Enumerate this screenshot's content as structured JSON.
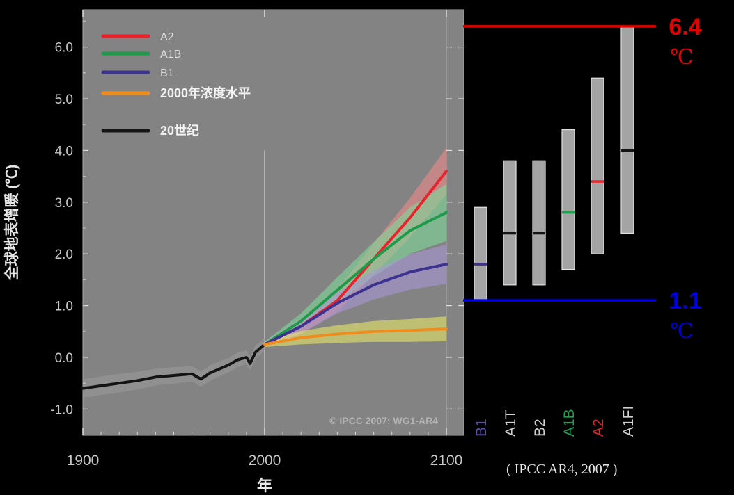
{
  "chart_data": [
    {
      "type": "line",
      "xlabel": "年",
      "ylabel": "全球地表增暖 (℃)",
      "xlim": [
        1900,
        2100
      ],
      "ylim": [
        -1.5,
        6.5
      ],
      "x_ticks": [
        "1900",
        "2000",
        "2100"
      ],
      "y_ticks": [
        "6.0",
        "5.0",
        "4.0",
        "3.0",
        "2.0",
        "1.0",
        "0.0",
        "-1.0"
      ],
      "watermark": "© IPCC 2007: WG1-AR4",
      "legend": [
        {
          "name": "A2",
          "color": "#e8232c"
        },
        {
          "name": "A1B",
          "color": "#1e9a4a"
        },
        {
          "name": "B1",
          "color": "#3c3290"
        },
        {
          "name": "2000年浓度水平",
          "color": "#f08c1e"
        },
        {
          "name": "20世纪",
          "color": "#141414"
        }
      ],
      "series": [
        {
          "name": "20世纪",
          "color": "#141414",
          "band_color": "#9a9a9a",
          "x": [
            1900,
            1910,
            1920,
            1930,
            1940,
            1950,
            1960,
            1965,
            1970,
            1980,
            1985,
            1990,
            1992,
            1995,
            2000
          ],
          "y": [
            -0.6,
            -0.55,
            -0.5,
            -0.45,
            -0.38,
            -0.35,
            -0.32,
            -0.42,
            -0.3,
            -0.15,
            -0.05,
            0.0,
            -0.12,
            0.1,
            0.25
          ],
          "band": [
            0.18,
            0.18,
            0.18,
            0.17,
            0.16,
            0.16,
            0.15,
            0.15,
            0.15,
            0.14,
            0.14,
            0.13,
            0.13,
            0.13,
            0.12
          ]
        },
        {
          "name": "A2",
          "color": "#e8232c",
          "band_color": "#f08a8a",
          "x": [
            2000,
            2020,
            2040,
            2060,
            2080,
            2100
          ],
          "y": [
            0.25,
            0.6,
            1.1,
            1.9,
            2.7,
            3.6
          ],
          "band": [
            0.05,
            0.15,
            0.22,
            0.3,
            0.38,
            0.45
          ]
        },
        {
          "name": "A1B",
          "color": "#1e9a4a",
          "band_color": "#7ed89a",
          "x": [
            2000,
            2020,
            2040,
            2060,
            2080,
            2100
          ],
          "y": [
            0.25,
            0.7,
            1.3,
            1.9,
            2.45,
            2.8
          ],
          "band": [
            0.05,
            0.15,
            0.25,
            0.33,
            0.45,
            0.55
          ]
        },
        {
          "name": "B1",
          "color": "#3c3290",
          "band_color": "#a898d6",
          "x": [
            2000,
            2020,
            2040,
            2060,
            2080,
            2100
          ],
          "y": [
            0.25,
            0.6,
            1.05,
            1.4,
            1.65,
            1.8
          ],
          "band": [
            0.05,
            0.14,
            0.2,
            0.28,
            0.34,
            0.38
          ]
        },
        {
          "name": "2000年浓度水平",
          "color": "#f08c1e",
          "band_color": "#e8e86a",
          "x": [
            2000,
            2020,
            2040,
            2060,
            2080,
            2100
          ],
          "y": [
            0.25,
            0.38,
            0.45,
            0.5,
            0.52,
            0.55
          ],
          "band": [
            0.05,
            0.13,
            0.17,
            0.2,
            0.22,
            0.24
          ]
        }
      ]
    },
    {
      "type": "range",
      "categories": [
        "B1",
        "A1T",
        "B2",
        "A1B",
        "A2",
        "A1FI"
      ],
      "label_colors": [
        "#5a50b4",
        "#d2d2d2",
        "#d2d2d2",
        "#1ea050",
        "#e8232c",
        "#d2d2d2"
      ],
      "low": [
        1.1,
        1.4,
        1.4,
        1.7,
        2.0,
        2.4
      ],
      "high": [
        2.9,
        3.8,
        3.8,
        4.4,
        5.4,
        6.4
      ],
      "best": [
        1.8,
        2.4,
        2.4,
        2.8,
        3.4,
        4.0
      ],
      "best_colors": [
        "#3c3290",
        "#141414",
        "#141414",
        "#1ea050",
        "#e8232c",
        "#141414"
      ],
      "bounds": [
        {
          "value": "6.4",
          "unit": "℃",
          "color": "#e60000",
          "y": 6.4
        },
        {
          "value": "1.1",
          "unit": "℃",
          "color": "#0000e6",
          "y": 1.1
        }
      ]
    }
  ],
  "credit": "( IPCC AR4, 2007 )"
}
